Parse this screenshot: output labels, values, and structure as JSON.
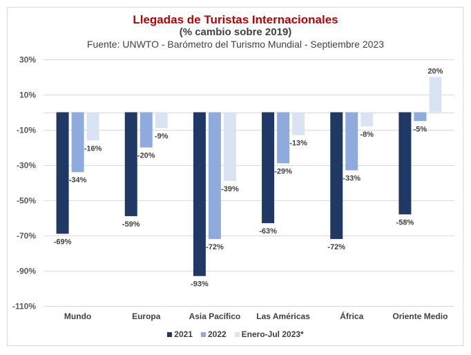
{
  "chart_data": {
    "type": "bar",
    "title": "Llegadas de Turistas Internacionales",
    "subtitle": "(% cambio sobre 2019)",
    "source": "Fuente: UNWTO - Barómetro del Turismo Mundial - Septiembre 2023",
    "xlabel": "",
    "ylabel": "",
    "ylim": [
      -110,
      30
    ],
    "yticks": [
      30,
      10,
      -10,
      -30,
      -50,
      -70,
      -90,
      -110
    ],
    "ytick_labels": [
      "30%",
      "10%",
      "-10%",
      "-30%",
      "-50%",
      "-70%",
      "-90%",
      "-110%"
    ],
    "grid": true,
    "legend_position": "bottom",
    "categories": [
      "Mundo",
      "Europa",
      "Asia Pacífico",
      "Las Américas",
      "África",
      "Oriente Medio"
    ],
    "series": [
      {
        "name": "2021",
        "color": "#203864",
        "values": [
          -69,
          -59,
          -93,
          -63,
          -72,
          -58
        ]
      },
      {
        "name": "2022",
        "color": "#8faadc",
        "values": [
          -34,
          -20,
          -72,
          -29,
          -33,
          -5
        ]
      },
      {
        "name": "Enero-Jul 2023*",
        "color": "#dae3f3",
        "values": [
          -16,
          -9,
          -39,
          -13,
          -8,
          20
        ]
      }
    ]
  }
}
